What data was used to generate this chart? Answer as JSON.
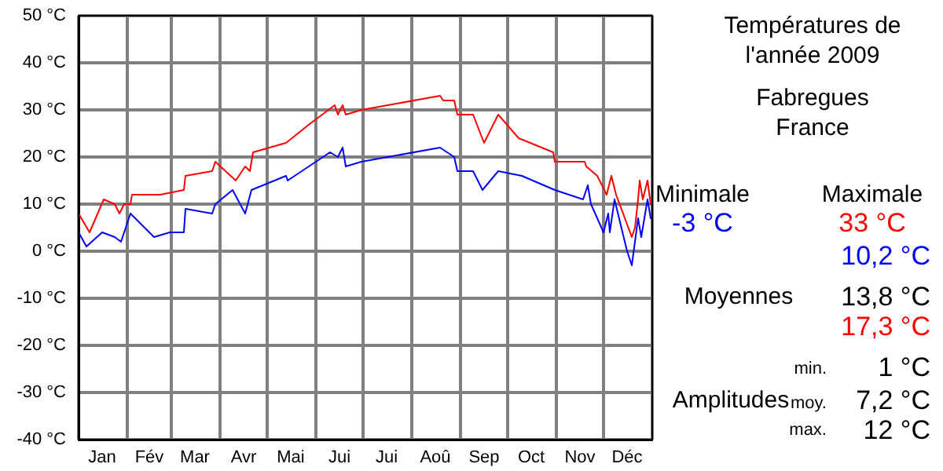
{
  "chart_data": {
    "type": "line",
    "title": "Températures de\nl'année 2009",
    "subtitle": "Fabregues\nFrance",
    "series": [
      {
        "color": "#0000ff",
        "x": [
          "2009-01-01",
          "2009-01-06",
          "2009-01-16",
          "2009-01-24",
          "2009-01-28",
          "2009-02-03",
          "2009-02-18",
          "2009-02-28",
          "2009-03-09",
          "2009-03-10",
          "2009-03-27",
          "2009-03-29",
          "2009-04-09",
          "2009-04-17",
          "2009-04-21",
          "2009-05-13",
          "2009-05-14",
          "2009-06-10",
          "2009-06-15",
          "2009-06-18",
          "2009-06-20",
          "2009-06-30",
          "2009-08-19",
          "2009-08-28",
          "2009-08-30",
          "2009-09-09",
          "2009-09-15",
          "2009-09-25",
          "2009-10-10",
          "2009-10-31",
          "2009-11-18",
          "2009-11-21",
          "2009-11-23",
          "2009-12-01",
          "2009-12-04",
          "2009-12-05",
          "2009-12-08",
          "2009-12-16",
          "2009-12-19",
          "2009-12-21",
          "2009-12-23",
          "2009-12-25",
          "2009-12-29",
          "2009-12-31"
        ],
        "values": [
          4,
          1,
          4,
          3,
          2,
          8,
          3,
          4,
          4,
          9,
          8,
          10,
          13,
          8,
          13,
          16,
          15,
          21,
          20,
          22,
          18,
          19,
          22,
          20,
          17,
          17,
          13,
          17,
          16,
          13,
          11,
          14,
          10,
          4,
          8,
          4,
          11,
          0,
          -3,
          2,
          7,
          3,
          11,
          7
        ]
      },
      {
        "color": "#ff0000",
        "x": [
          "2009-01-01",
          "2009-01-08",
          "2009-01-17",
          "2009-01-24",
          "2009-01-27",
          "2009-01-30",
          "2009-02-03",
          "2009-02-04",
          "2009-02-22",
          "2009-03-09",
          "2009-03-10",
          "2009-03-27",
          "2009-03-29",
          "2009-04-11",
          "2009-04-17",
          "2009-04-20",
          "2009-04-22",
          "2009-05-13",
          "2009-05-28",
          "2009-06-13",
          "2009-06-15",
          "2009-06-18",
          "2009-06-20",
          "2009-06-30",
          "2009-08-19",
          "2009-08-21",
          "2009-08-28",
          "2009-08-30",
          "2009-09-09",
          "2009-09-16",
          "2009-09-25",
          "2009-10-08",
          "2009-10-30",
          "2009-10-31",
          "2009-11-19",
          "2009-11-20",
          "2009-11-27",
          "2009-12-03",
          "2009-12-06",
          "2009-12-09",
          "2009-12-19",
          "2009-12-21",
          "2009-12-23",
          "2009-12-24",
          "2009-12-26",
          "2009-12-29",
          "2009-12-31"
        ],
        "values": [
          8,
          4,
          11,
          10,
          8,
          10,
          10,
          12,
          12,
          13,
          16,
          17,
          19,
          15,
          18,
          17,
          21,
          23,
          27,
          31,
          29,
          31,
          29,
          30,
          33,
          32,
          32,
          29,
          29,
          23,
          29,
          24,
          21,
          19,
          19,
          18,
          16,
          12,
          16,
          12,
          3,
          5,
          11,
          15,
          11,
          15,
          10
        ]
      }
    ],
    "xlim": [
      "2009-01-01",
      "2010-01-01"
    ],
    "xticks": [
      {
        "value": "2009-01-01",
        "label": null
      },
      {
        "value": "2009-02-01",
        "label": null
      },
      {
        "value": "2009-03-01",
        "label": null
      },
      {
        "value": "2009-04-01",
        "label": null
      },
      {
        "value": "2009-05-01",
        "label": null
      },
      {
        "value": "2009-06-01",
        "label": null
      },
      {
        "value": "2009-07-01",
        "label": null
      },
      {
        "value": "2009-08-01",
        "label": null
      },
      {
        "value": "2009-09-01",
        "label": null
      },
      {
        "value": "2009-10-01",
        "label": null
      },
      {
        "value": "2009-11-01",
        "label": null
      },
      {
        "value": "2009-12-01",
        "label": null
      },
      {
        "value": "2010-01-01",
        "label": null
      },
      {
        "value": "2009-01-16",
        "label": "Jan"
      },
      {
        "value": "2009-02-15",
        "label": "Fév"
      },
      {
        "value": "2009-03-16",
        "label": "Mar"
      },
      {
        "value": "2009-04-16",
        "label": "Avr"
      },
      {
        "value": "2009-05-16",
        "label": "Mai"
      },
      {
        "value": "2009-06-16",
        "label": "Jui"
      },
      {
        "value": "2009-07-16",
        "label": "Jui"
      },
      {
        "value": "2009-08-16",
        "label": "Aoû"
      },
      {
        "value": "2009-09-16",
        "label": "Sep"
      },
      {
        "value": "2009-10-16",
        "label": "Oct"
      },
      {
        "value": "2009-11-16",
        "label": "Nov"
      },
      {
        "value": "2009-12-16",
        "label": "Déc"
      }
    ],
    "ylim": [
      -40,
      50
    ],
    "yticks": [
      {
        "value": -40,
        "label": "-40 °C"
      },
      {
        "value": -30,
        "label": "-30 °C"
      },
      {
        "value": -20,
        "label": "-20 °C"
      },
      {
        "value": -10,
        "label": "-10 °C"
      },
      {
        "value": 0,
        "label": "0 °C"
      },
      {
        "value": 10,
        "label": "10 °C"
      },
      {
        "value": 20,
        "label": "20 °C"
      },
      {
        "value": 30,
        "label": "30 °C"
      },
      {
        "value": 40,
        "label": "40 °C"
      },
      {
        "value": 50,
        "label": "50 °C"
      }
    ],
    "grid": true,
    "marker": "none",
    "line_style": "solid",
    "annotations": [
      "Minimale",
      "Maximale",
      "-3 °C",
      "33 °C",
      "10,2 °C",
      "Moyennes",
      "13,8 °C",
      "17,3 °C",
      "min.",
      "1 °C",
      "Amplitudes",
      "moy.",
      "7,2 °C",
      "max.",
      "12 °C"
    ]
  }
}
